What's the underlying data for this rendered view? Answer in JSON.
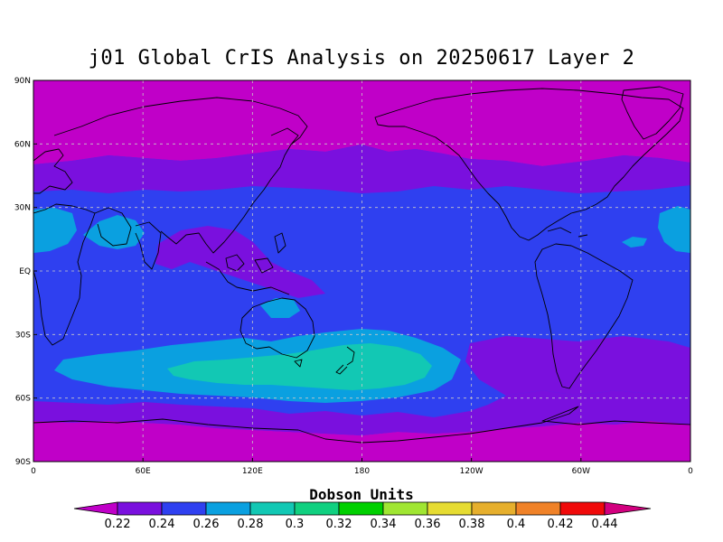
{
  "title": "j01 Global CrIS Analysis on 20250617 Layer 2",
  "colorbar_title": "Dobson Units",
  "lat_ticks": [
    "90N",
    "60N",
    "30N",
    "EQ",
    "30S",
    "60S",
    "90S"
  ],
  "lon_ticks": [
    "0",
    "60E",
    "120E",
    "180",
    "120W",
    "60W",
    "0"
  ],
  "levels": [
    "0.22",
    "0.24",
    "0.26",
    "0.28",
    "0.3",
    "0.32",
    "0.34",
    "0.36",
    "0.38",
    "0.4",
    "0.42",
    "0.44"
  ],
  "colors": {
    "lt_0.22": "#c000c8",
    "0.22-0.24": "#7a10de",
    "0.24-0.26": "#2f40f0",
    "0.26-0.28": "#0aa0e0",
    "0.28-0.30": "#12c8b4",
    "0.30-0.32": "#10d080",
    "0.32-0.34": "#00d000",
    "0.34-0.36": "#a0e632",
    "0.36-0.38": "#e6dc32",
    "0.38-0.40": "#e6af2d",
    "0.40-0.42": "#f08228",
    "0.42-0.44": "#f00a0a",
    "gt_0.44": "#d2007f"
  },
  "map": {
    "projection": "cylindrical equidistant",
    "lon_range": [
      0,
      360
    ],
    "lat_range": [
      -90,
      90
    ],
    "grid": "dashed",
    "background_level": "0.24-0.26"
  }
}
